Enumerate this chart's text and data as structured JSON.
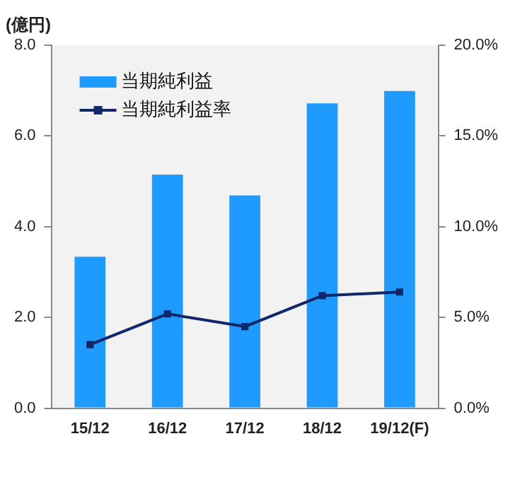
{
  "chart_data": {
    "type": "bar",
    "ylabel": "(億円)",
    "categories": [
      "15/12",
      "16/12",
      "17/12",
      "18/12",
      "19/12(F)"
    ],
    "series": [
      {
        "name": "当期純利益",
        "color": "#1f9bff",
        "values": [
          3.34,
          5.15,
          4.69,
          6.72,
          6.99
        ]
      },
      {
        "name": "当期純利益率",
        "type": "line",
        "axis": "y2",
        "color": "#10276a",
        "values": [
          3.5,
          5.2,
          4.5,
          6.2,
          6.4
        ]
      }
    ],
    "ylim": [
      0,
      8
    ],
    "yticks": [
      {
        "value": 0,
        "label": "0.0"
      },
      {
        "value": 2,
        "label": "2.0"
      },
      {
        "value": 4,
        "label": "4.0"
      },
      {
        "value": 6,
        "label": "6.0"
      },
      {
        "value": 8,
        "label": "8.0"
      }
    ],
    "y2lim": [
      0,
      20
    ],
    "y2ticks": [
      {
        "value": 0,
        "label": "0.0%"
      },
      {
        "value": 5,
        "label": "5.0%"
      },
      {
        "value": 10,
        "label": "10.0%"
      },
      {
        "value": 15,
        "label": "15.0%"
      },
      {
        "value": 20,
        "label": "20.0%"
      }
    ],
    "grid": false,
    "legend": "top left",
    "marker": "square",
    "line_style": "solid"
  }
}
